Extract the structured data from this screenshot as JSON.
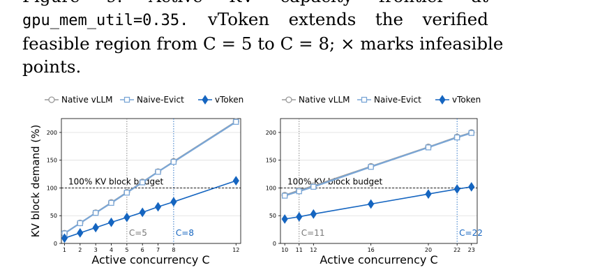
{
  "caption": {
    "line1": "Figure 9: Active KV capacity frontier at",
    "line2a": "gpu_mem_util=0.35.",
    "line2b": " vToken extends the verified",
    "line3": "feasible region from C = 5 to C = 8; × marks infeasible",
    "line4": "points."
  },
  "chart_data": [
    {
      "type": "line",
      "xlabel": "Active concurrency C",
      "ylabel": "KV block demand (%)",
      "xticks": [
        1,
        2,
        3,
        4,
        5,
        6,
        7,
        8,
        12
      ],
      "yticks": [
        0,
        50,
        100,
        150,
        200
      ],
      "xlim": [
        0.8,
        12.3
      ],
      "ylim": [
        0,
        225
      ],
      "grid": true,
      "legend": "top",
      "series": [
        {
          "name": "Native vLLM",
          "color": "#999999",
          "marker": "circle",
          "x": [
            1,
            2,
            3,
            4,
            5,
            6,
            7,
            8,
            12
          ],
          "y": [
            18.5,
            37,
            55.5,
            74,
            92.5,
            111,
            129.5,
            148,
            220
          ]
        },
        {
          "name": "Naive-Evict",
          "color": "#7aa6d6",
          "marker": "square",
          "x": [
            1,
            2,
            3,
            4,
            5,
            6,
            7,
            8,
            12
          ],
          "y": [
            18,
            36.5,
            55,
            73,
            91.5,
            110,
            129,
            147,
            219
          ]
        },
        {
          "name": "vToken",
          "color": "#1565c0",
          "marker": "diamond",
          "x": [
            1,
            2,
            3,
            4,
            5,
            6,
            7,
            8,
            12
          ],
          "y": [
            9.5,
            19,
            28.5,
            38,
            47,
            56,
            66,
            75,
            113
          ]
        }
      ],
      "hline": {
        "y": 100,
        "label": "100% KV block budget"
      },
      "vlines": [
        {
          "x": 5,
          "label": "C=5",
          "color": "#777777"
        },
        {
          "x": 8,
          "label": "C=8",
          "color": "#1565c0"
        }
      ]
    },
    {
      "type": "line",
      "xlabel": "Active concurrency C",
      "ylabel": "",
      "xticks": [
        10,
        11,
        12,
        16,
        20,
        22,
        23
      ],
      "yticks": [
        0,
        50,
        100,
        150,
        200
      ],
      "xlim": [
        9.7,
        23.4
      ],
      "ylim": [
        0,
        225
      ],
      "grid": true,
      "legend": "top",
      "series": [
        {
          "name": "Native vLLM",
          "color": "#999999",
          "marker": "circle",
          "x": [
            10,
            11,
            12,
            16,
            20,
            22,
            23
          ],
          "y": [
            87,
            96,
            104,
            139,
            174,
            192,
            200
          ]
        },
        {
          "name": "Naive-Evict",
          "color": "#7aa6d6",
          "marker": "square",
          "x": [
            10,
            11,
            12,
            16,
            20,
            22,
            23
          ],
          "y": [
            86,
            94,
            102,
            138,
            173,
            191,
            199
          ]
        },
        {
          "name": "vToken",
          "color": "#1565c0",
          "marker": "diamond",
          "x": [
            10,
            11,
            12,
            16,
            20,
            22,
            23
          ],
          "y": [
            44,
            48,
            53,
            71,
            89,
            98,
            102
          ]
        }
      ],
      "hline": {
        "y": 100,
        "label": "100% KV block budget"
      },
      "vlines": [
        {
          "x": 11,
          "label": "C=11",
          "color": "#777777"
        },
        {
          "x": 22,
          "label": "C=22",
          "color": "#1565c0"
        }
      ]
    }
  ]
}
